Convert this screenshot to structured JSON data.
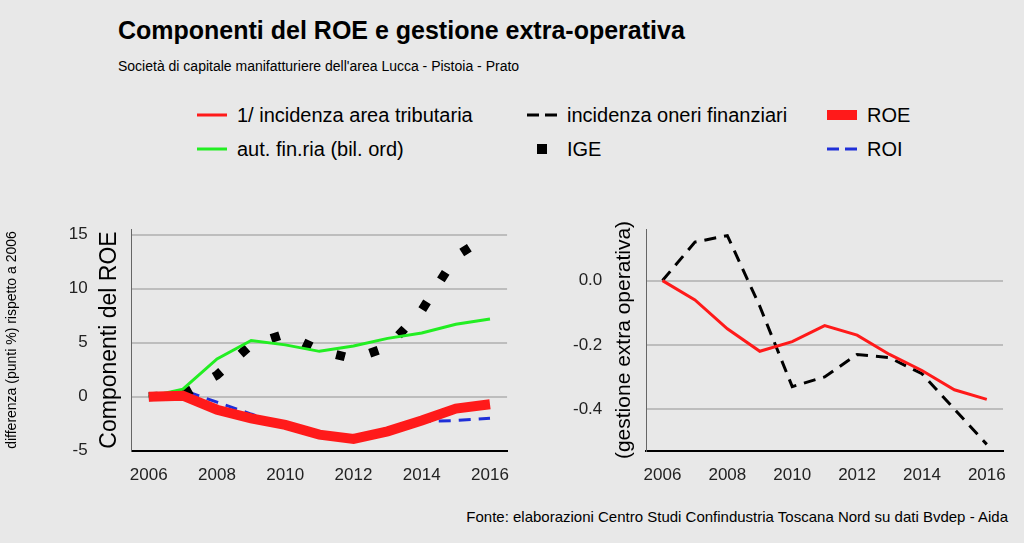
{
  "title": "Componenti del ROE e gestione extra-operativa",
  "subtitle": "Società di capitale manifatturiere dell'area Lucca - Pistoia - Prato",
  "source": "Fonte: elaborazioni Centro Studi Confindustria Toscana Nord su dati Bvdep - Aida",
  "chart_data": [
    {
      "type": "line",
      "y_label": "differenza (punti %) rispetto a 2006",
      "annotation": "Componenti del ROE",
      "x": [
        2006,
        2007,
        2008,
        2009,
        2010,
        2011,
        2012,
        2013,
        2014,
        2015,
        2016
      ],
      "xlim": [
        2005.5,
        2016.5
      ],
      "xticks": [
        2006,
        2008,
        2010,
        2012,
        2014,
        2016
      ],
      "ylim": [
        -5,
        15.5
      ],
      "yticks": [
        -5,
        0,
        5,
        10,
        15
      ],
      "grid": true,
      "series": [
        {
          "name": "ROE",
          "color": "#ff1a1a",
          "line_style": "thick",
          "values": [
            0,
            0.1,
            -1.2,
            -2.0,
            -2.6,
            -3.5,
            -3.9,
            -3.2,
            -2.2,
            -1.1,
            -0.7
          ]
        },
        {
          "name": "aut. fin.ria (bil. ord)",
          "color": "#22ee22",
          "line_style": "solid",
          "values": [
            0,
            0.7,
            3.5,
            5.2,
            4.8,
            4.2,
            4.7,
            5.4,
            5.9,
            6.7,
            7.2
          ]
        },
        {
          "name": "IGE",
          "color": "#000000",
          "line_style": "dotted",
          "values": [
            0,
            0.2,
            2.0,
            4.8,
            5.8,
            4.3,
            3.5,
            4.6,
            8.0,
            13.0,
            15.0
          ]
        },
        {
          "name": "ROI",
          "color": "#1f2fd8",
          "line_style": "dashed",
          "values": [
            0,
            0.6,
            -0.5,
            -1.6,
            -2.6,
            -3.6,
            -3.8,
            -2.9,
            -2.3,
            -2.2,
            -2.0
          ]
        }
      ]
    },
    {
      "type": "line",
      "y_label": "(gestione extra operativa)",
      "x": [
        2006,
        2007,
        2008,
        2009,
        2010,
        2011,
        2012,
        2013,
        2014,
        2015,
        2016
      ],
      "xlim": [
        2005.5,
        2016.5
      ],
      "xticks": [
        2006,
        2008,
        2010,
        2012,
        2014,
        2016
      ],
      "ylim": [
        -0.53,
        0.16
      ],
      "yticks": [
        -0.4,
        -0.2,
        {
          "value": 0,
          "label": "0.0"
        }
      ],
      "grid": true,
      "series": [
        {
          "name": "1/ incidenza area tributaria",
          "color": "#ff1a1a",
          "line_style": "solid",
          "values": [
            0,
            -0.06,
            -0.15,
            -0.22,
            -0.19,
            -0.14,
            -0.17,
            -0.23,
            -0.28,
            -0.34,
            -0.37
          ]
        },
        {
          "name": "incidenza oneri finanziari",
          "color": "#000000",
          "line_style": "dashed",
          "values": [
            0,
            0.12,
            0.14,
            -0.08,
            -0.33,
            -0.3,
            -0.23,
            -0.24,
            -0.29,
            -0.4,
            -0.51
          ]
        }
      ]
    }
  ]
}
